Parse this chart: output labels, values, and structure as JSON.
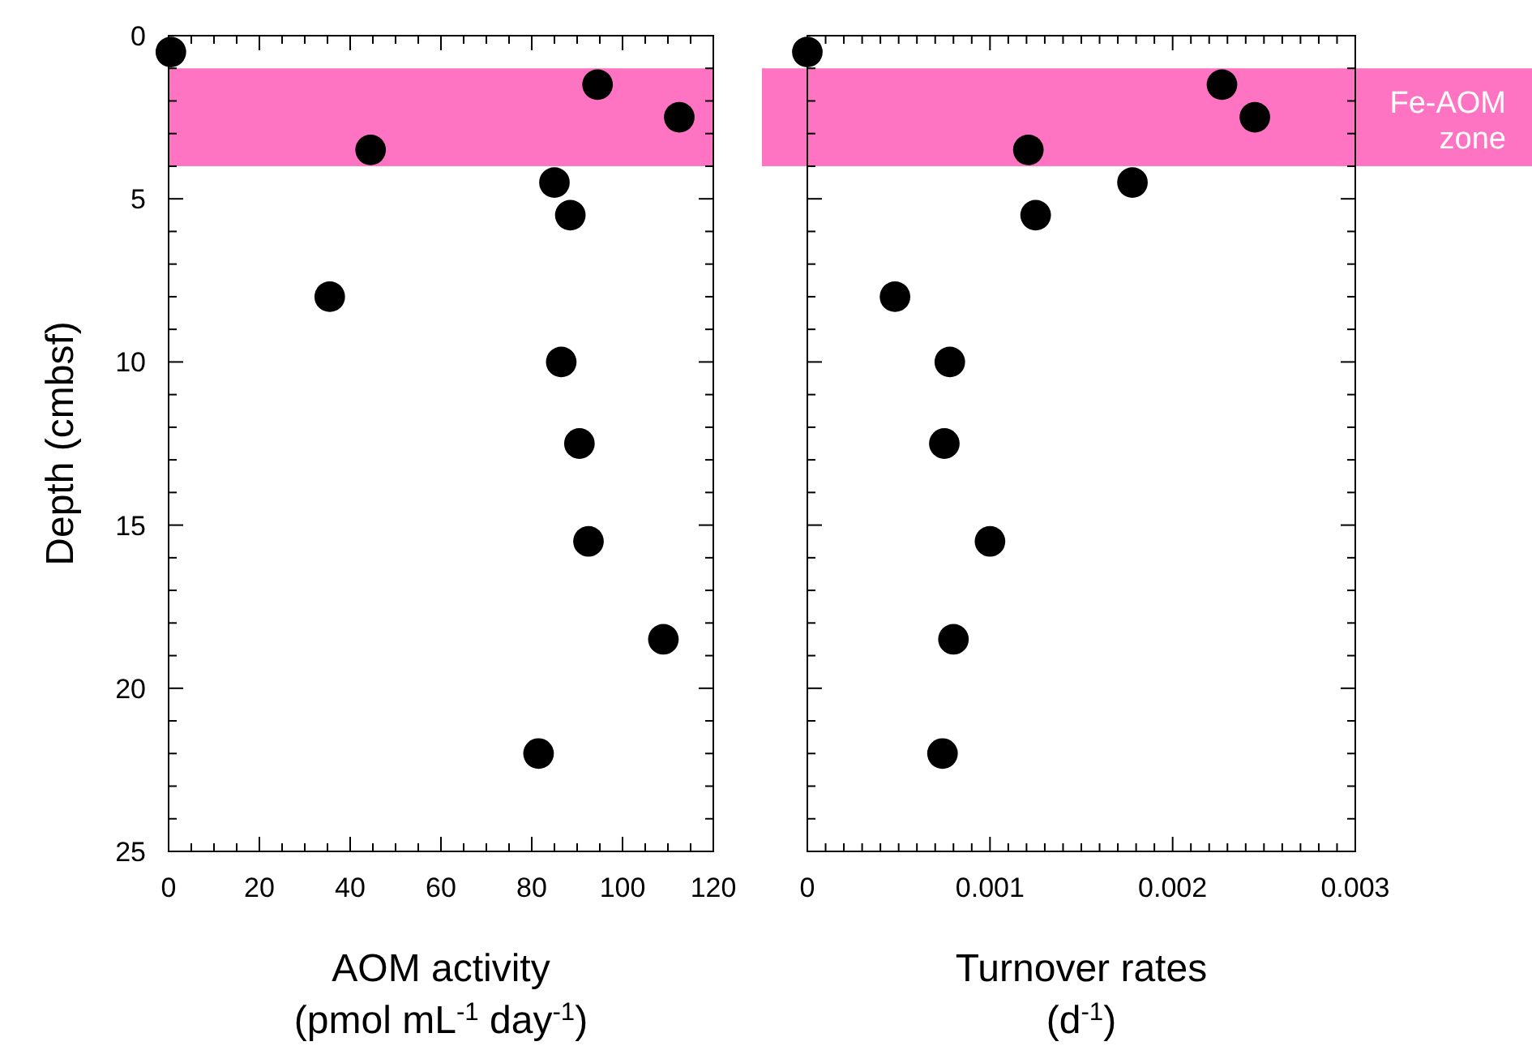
{
  "chart_data": [
    {
      "type": "scatter",
      "xlabel": "AOM activity\n(pmol mL$^{-1}$ day$^{-1}$)",
      "ylabel": "Depth (cmbsf)",
      "marker": "circle",
      "x": [
        0.5,
        94.5,
        112.5,
        44.5,
        85,
        88.5,
        35.5,
        86.5,
        90.5,
        92.5,
        109,
        81.5
      ],
      "series": [
        {
          "color": "#000000",
          "values": [
            0.5,
            1.5,
            2.5,
            3.5,
            4.5,
            5.5,
            8,
            10,
            12.5,
            15.5,
            18.5,
            22
          ]
        }
      ],
      "xlim": [
        0,
        120
      ],
      "xticks": [
        0,
        {
          "value": 5,
          "label": null
        },
        {
          "value": 10,
          "label": null
        },
        {
          "value": 15,
          "label": null
        },
        20,
        {
          "value": 25,
          "label": null
        },
        {
          "value": 30,
          "label": null
        },
        {
          "value": 35,
          "label": null
        },
        40,
        {
          "value": 45,
          "label": null
        },
        {
          "value": 50,
          "label": null
        },
        {
          "value": 55,
          "label": null
        },
        60,
        {
          "value": 65,
          "label": null
        },
        {
          "value": 70,
          "label": null
        },
        {
          "value": 75,
          "label": null
        },
        80,
        {
          "value": 85,
          "label": null
        },
        {
          "value": 90,
          "label": null
        },
        {
          "value": 95,
          "label": null
        },
        100,
        {
          "value": 105,
          "label": null
        },
        {
          "value": 110,
          "label": null
        },
        {
          "value": 115,
          "label": null
        },
        120
      ],
      "ylim": [
        25,
        0
      ],
      "yticks": [
        0,
        {
          "value": 1,
          "label": null
        },
        {
          "value": 2,
          "label": null
        },
        {
          "value": 3,
          "label": null
        },
        {
          "value": 4,
          "label": null
        },
        5,
        {
          "value": 6,
          "label": null
        },
        {
          "value": 7,
          "label": null
        },
        {
          "value": 8,
          "label": null
        },
        {
          "value": 9,
          "label": null
        },
        10,
        {
          "value": 11,
          "label": null
        },
        {
          "value": 12,
          "label": null
        },
        {
          "value": 13,
          "label": null
        },
        {
          "value": 14,
          "label": null
        },
        15,
        {
          "value": 16,
          "label": null
        },
        {
          "value": 17,
          "label": null
        },
        {
          "value": 18,
          "label": null
        },
        {
          "value": 19,
          "label": null
        },
        20,
        {
          "value": 21,
          "label": null
        },
        {
          "value": 22,
          "label": null
        },
        {
          "value": 23,
          "label": null
        },
        {
          "value": 24,
          "label": null
        },
        25
      ],
      "bands": [
        {
          "axis": "y",
          "from": 1,
          "to": 4,
          "color": "#ff73c3"
        }
      ]
    },
    {
      "type": "scatter",
      "xlabel": "Turnover rates\n(d$^{-1}$)",
      "marker": "circle",
      "tick_labels": "x",
      "x": [
        0,
        0.00227,
        0.00245,
        0.00121,
        0.00178,
        0.00125,
        0.00048,
        0.00078,
        0.00075,
        0.001,
        0.0008,
        0.00074
      ],
      "series": [
        {
          "color": "#000000",
          "values": [
            0.5,
            1.5,
            2.5,
            3.5,
            4.5,
            5.5,
            8,
            10,
            12.5,
            15.5,
            18.5,
            22
          ]
        }
      ],
      "xlim": [
        0,
        0.003
      ],
      "xticks": [
        0,
        {
          "value": 0.0001,
          "label": null
        },
        {
          "value": 0.0002,
          "label": null
        },
        {
          "value": 0.0003,
          "label": null
        },
        {
          "value": 0.0004,
          "label": null
        },
        {
          "value": 0.0005,
          "label": null
        },
        {
          "value": 0.0006,
          "label": null
        },
        {
          "value": 0.0007,
          "label": null
        },
        {
          "value": 0.0008,
          "label": null
        },
        {
          "value": 0.0009,
          "label": null
        },
        0.001,
        {
          "value": 0.0011,
          "label": null
        },
        {
          "value": 0.0012,
          "label": null
        },
        {
          "value": 0.0013,
          "label": null
        },
        {
          "value": 0.0014,
          "label": null
        },
        {
          "value": 0.0015,
          "label": null
        },
        {
          "value": 0.0016,
          "label": null
        },
        {
          "value": 0.0017,
          "label": null
        },
        {
          "value": 0.0018,
          "label": null
        },
        {
          "value": 0.0019,
          "label": null
        },
        0.002,
        {
          "value": 0.0021,
          "label": null
        },
        {
          "value": 0.0022,
          "label": null
        },
        {
          "value": 0.0023,
          "label": null
        },
        {
          "value": 0.0024,
          "label": null
        },
        {
          "value": 0.0025,
          "label": null
        },
        {
          "value": 0.0026,
          "label": null
        },
        {
          "value": 0.0027,
          "label": null
        },
        {
          "value": 0.0028,
          "label": null
        },
        {
          "value": 0.0029,
          "label": null
        },
        0.003
      ],
      "ylim": [
        25,
        0
      ],
      "yticks": [
        0,
        {
          "value": 1,
          "label": null
        },
        {
          "value": 2,
          "label": null
        },
        {
          "value": 3,
          "label": null
        },
        {
          "value": 4,
          "label": null
        },
        5,
        {
          "value": 6,
          "label": null
        },
        {
          "value": 7,
          "label": null
        },
        {
          "value": 8,
          "label": null
        },
        {
          "value": 9,
          "label": null
        },
        10,
        {
          "value": 11,
          "label": null
        },
        {
          "value": 12,
          "label": null
        },
        {
          "value": 13,
          "label": null
        },
        {
          "value": 14,
          "label": null
        },
        15,
        {
          "value": 16,
          "label": null
        },
        {
          "value": 17,
          "label": null
        },
        {
          "value": 18,
          "label": null
        },
        {
          "value": 19,
          "label": null
        },
        20,
        {
          "value": 21,
          "label": null
        },
        {
          "value": 22,
          "label": null
        },
        {
          "value": 23,
          "label": null
        },
        {
          "value": 24,
          "label": null
        },
        25
      ],
      "bands": [
        {
          "axis": "y",
          "from": 1,
          "to": 4,
          "color": "#ff73c3",
          "label": "Fe-AOM\nzone"
        }
      ]
    }
  ]
}
